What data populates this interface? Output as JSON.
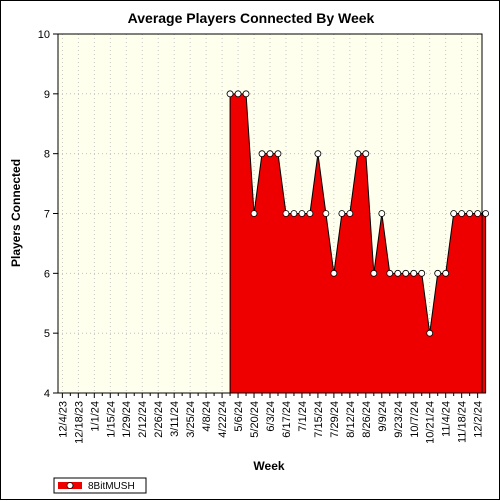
{
  "chart_data": {
    "type": "area",
    "title": "Average Players Connected By Week",
    "xlabel": "Week",
    "ylabel": "Players Connected",
    "ylim": [
      4,
      10
    ],
    "y_ticks": [
      "4",
      "5",
      "6",
      "7",
      "8",
      "9",
      "10"
    ],
    "x_ticks": [
      "12/4/23",
      "12/18/23",
      "1/1/24",
      "1/15/24",
      "1/29/24",
      "2/12/24",
      "2/26/24",
      "3/11/24",
      "3/25/24",
      "4/8/24",
      "4/22/24",
      "5/6/24",
      "5/20/24",
      "6/3/24",
      "6/17/24",
      "7/1/24",
      "7/15/24",
      "7/29/24",
      "8/12/24",
      "8/26/24",
      "9/9/24",
      "9/23/24",
      "10/7/24",
      "10/21/24",
      "11/4/24",
      "11/18/24",
      "12/2/24"
    ],
    "grid": true,
    "legend_position": "bottom-left",
    "colors": {
      "series": "#ee0000",
      "plot_background": "#ffffee",
      "marker_fill": "#ffffff"
    },
    "series": [
      {
        "name": "8BitMUSH",
        "x": [
          "4/29/24",
          "5/6/24",
          "5/13/24",
          "5/20/24",
          "5/27/24",
          "6/3/24",
          "6/10/24",
          "6/17/24",
          "6/24/24",
          "7/1/24",
          "7/8/24",
          "7/15/24",
          "7/22/24",
          "7/29/24",
          "8/5/24",
          "8/12/24",
          "8/19/24",
          "8/26/24",
          "9/2/24",
          "9/9/24",
          "9/16/24",
          "9/23/24",
          "9/30/24",
          "10/7/24",
          "10/14/24",
          "10/21/24",
          "10/28/24",
          "11/4/24",
          "11/11/24",
          "11/18/24",
          "11/25/24",
          "12/2/24",
          "12/9/24"
        ],
        "values": [
          9,
          9,
          9,
          7,
          8,
          8,
          8,
          7,
          7,
          7,
          7,
          8,
          7,
          6,
          7,
          7,
          8,
          8,
          6,
          7,
          6,
          6,
          6,
          6,
          6,
          5,
          6,
          6,
          7,
          7,
          7,
          7,
          7
        ]
      }
    ]
  }
}
